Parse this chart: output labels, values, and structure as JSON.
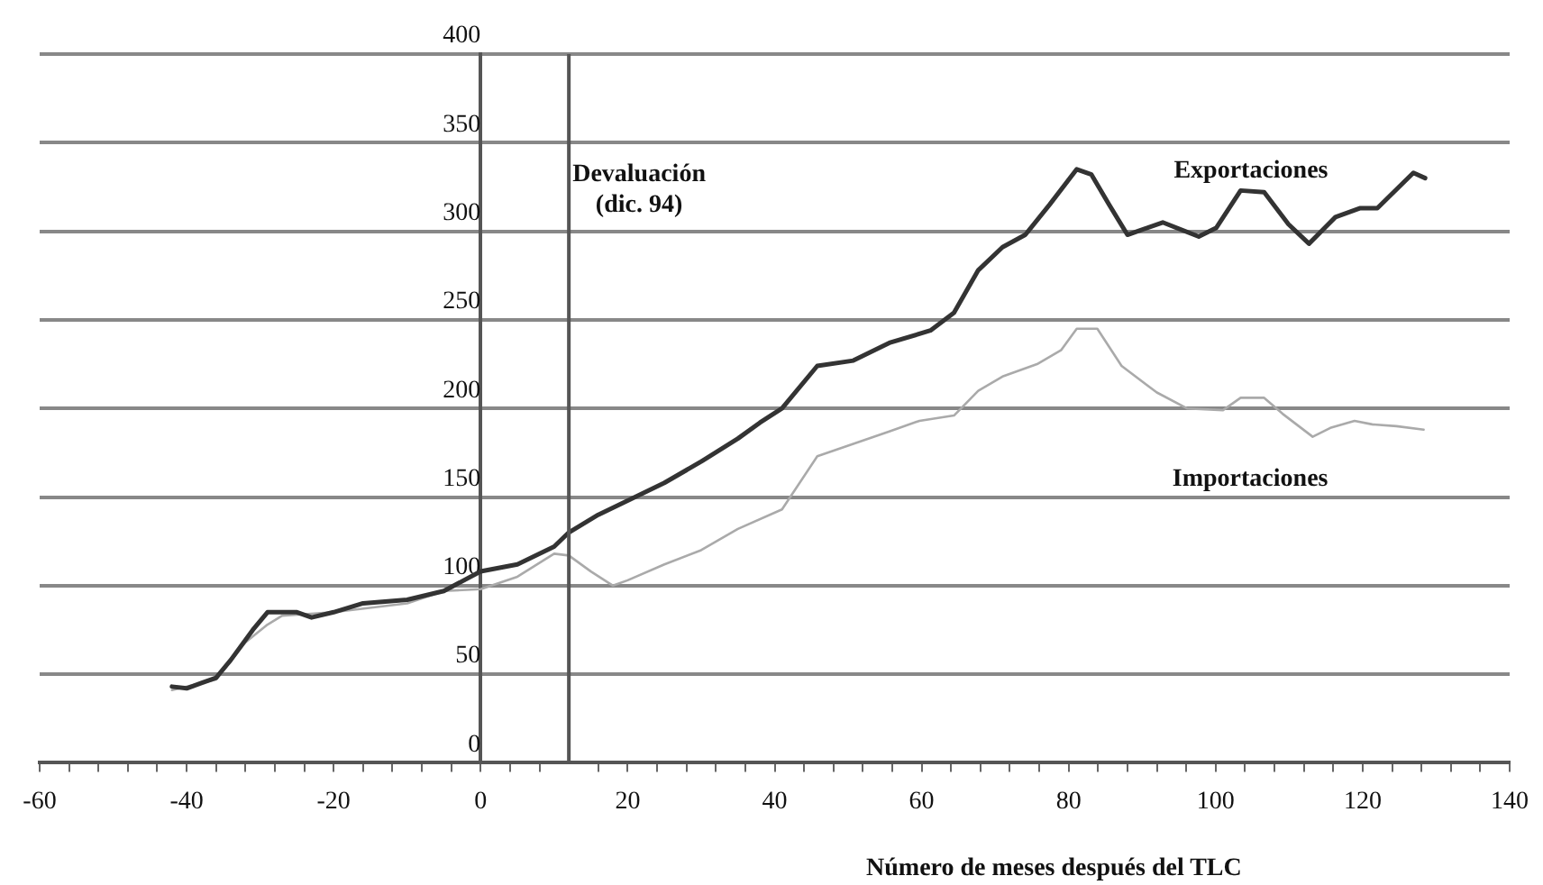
{
  "chart_data": {
    "type": "line",
    "xlabel": "Número de meses después del TLC",
    "xlim": [
      -60,
      140
    ],
    "xticks": [
      -60,
      {
        "value": -56,
        "label": null
      },
      {
        "value": -52,
        "label": null
      },
      {
        "value": -48,
        "label": null
      },
      {
        "value": -44,
        "label": null
      },
      -40,
      {
        "value": -36,
        "label": null
      },
      {
        "value": -32,
        "label": null
      },
      {
        "value": -28,
        "label": null
      },
      {
        "value": -24,
        "label": null
      },
      -20,
      {
        "value": -16,
        "label": null
      },
      {
        "value": -12,
        "label": null
      },
      {
        "value": -8,
        "label": null
      },
      {
        "value": -4,
        "label": null
      },
      0,
      {
        "value": 4,
        "label": null
      },
      {
        "value": 8,
        "label": null
      },
      {
        "value": 16,
        "label": null
      },
      20,
      {
        "value": 24,
        "label": null
      },
      {
        "value": 28,
        "label": null
      },
      {
        "value": 32,
        "label": null
      },
      {
        "value": 36,
        "label": null
      },
      40,
      {
        "value": 44,
        "label": null
      },
      {
        "value": 48,
        "label": null
      },
      {
        "value": 52,
        "label": null
      },
      {
        "value": 56,
        "label": null
      },
      60,
      {
        "value": 64,
        "label": null
      },
      {
        "value": 68,
        "label": null
      },
      {
        "value": 72,
        "label": null
      },
      {
        "value": 76,
        "label": null
      },
      80,
      {
        "value": 84,
        "label": null
      },
      {
        "value": 88,
        "label": null
      },
      {
        "value": 92,
        "label": null
      },
      {
        "value": 96,
        "label": null
      },
      100,
      {
        "value": 104,
        "label": null
      },
      {
        "value": 108,
        "label": null
      },
      {
        "value": 112,
        "label": null
      },
      {
        "value": 116,
        "label": null
      },
      120,
      {
        "value": 124,
        "label": null
      },
      {
        "value": 128,
        "label": null
      },
      {
        "value": 132,
        "label": null
      },
      {
        "value": 136,
        "label": null
      },
      140
    ],
    "ylim": [
      0,
      400
    ],
    "yticks": [
      0,
      50,
      100,
      150,
      200,
      250,
      300,
      350,
      400
    ],
    "grid": "y",
    "legend": false,
    "marker": "none",
    "line_style": "solid",
    "ref_lines": [
      {
        "axis": "x",
        "value": 12,
        "label": "Devaluación\n(dic. 94)",
        "color": "#555555"
      }
    ],
    "series": [
      {
        "name": "Exportaciones",
        "color": "#333333",
        "x": [
          -42,
          -40,
          -38,
          -36,
          -34,
          -31,
          -29,
          -25,
          -23,
          -20,
          -16,
          -10,
          -5,
          0,
          5,
          10,
          12,
          16,
          20,
          25,
          30,
          35,
          38,
          41,
          45.8,
          50.7,
          55.6,
          61.2,
          64.4,
          67.7,
          71,
          74.1,
          77.4,
          81.1,
          83.1,
          85.5,
          88,
          92.8,
          97.7,
          100.1,
          103.4,
          106.6,
          109.9,
          112.7,
          116.3,
          119.6,
          122,
          126.9,
          128.5
        ],
        "values": [
          43,
          42,
          45,
          48,
          58,
          75,
          85,
          85,
          82,
          85,
          90,
          92,
          97,
          108,
          112,
          122,
          130,
          140,
          148,
          158,
          170,
          183,
          192,
          200,
          224,
          227,
          237,
          244,
          254,
          278,
          291,
          298,
          315,
          335,
          332,
          315,
          298,
          305,
          297,
          302,
          323,
          322,
          304,
          293,
          308,
          313,
          313,
          333,
          330
        ]
      },
      {
        "name": "Importaciones",
        "color": "#aaaaaa",
        "x": [
          -42,
          -36,
          -32,
          -29,
          -27,
          -20,
          -10,
          -5,
          0,
          5,
          10,
          12,
          15,
          18,
          20,
          25,
          30,
          35,
          41,
          45.8,
          50.7,
          55.6,
          59.7,
          64.4,
          67.7,
          71,
          75.7,
          79,
          81.1,
          83.9,
          87.2,
          92,
          96.1,
          101,
          103.4,
          106.6,
          109.1,
          113.2,
          115.6,
          118.9,
          121.3,
          124.6,
          128.3
        ],
        "values": [
          41,
          47,
          68,
          78,
          83,
          85,
          90,
          97,
          98,
          105,
          118,
          117,
          108,
          100,
          103,
          112,
          120,
          132,
          143,
          173,
          180,
          187,
          193,
          196,
          210,
          218,
          225,
          233,
          245,
          245,
          224,
          209,
          200,
          199,
          206,
          206,
          197,
          184,
          189,
          193,
          191,
          190,
          188
        ]
      }
    ]
  }
}
